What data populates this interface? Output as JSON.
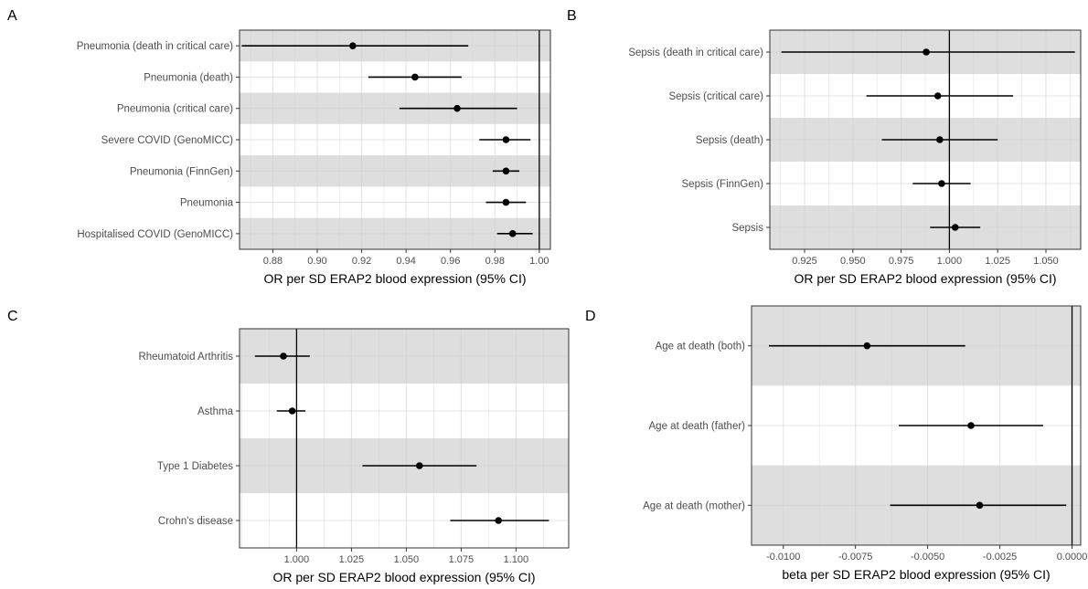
{
  "chart_data": [
    {
      "type": "forest",
      "panel": "A",
      "xlabel": "OR per SD ERAP2 blood expression (95% CI)",
      "xlim": [
        0.865,
        1.005
      ],
      "xticks": [
        "0.88",
        "0.90",
        "0.92",
        "0.94",
        "0.96",
        "0.98",
        "1.00"
      ],
      "reference": 1.0,
      "rows": [
        {
          "label": "Pneumonia (death in critical care)",
          "est": 0.916,
          "lo": 0.866,
          "hi": 0.968
        },
        {
          "label": "Pneumonia (death)",
          "est": 0.944,
          "lo": 0.923,
          "hi": 0.965
        },
        {
          "label": "Pneumonia (critical care)",
          "est": 0.963,
          "lo": 0.937,
          "hi": 0.99
        },
        {
          "label": "Severe COVID (GenoMICC)",
          "est": 0.985,
          "lo": 0.973,
          "hi": 0.996
        },
        {
          "label": "Pneumonia (FinnGen)",
          "est": 0.985,
          "lo": 0.979,
          "hi": 0.991
        },
        {
          "label": "Pneumonia",
          "est": 0.985,
          "lo": 0.976,
          "hi": 0.994
        },
        {
          "label": "Hospitalised COVID (GenoMICC)",
          "est": 0.988,
          "lo": 0.981,
          "hi": 0.997
        }
      ]
    },
    {
      "type": "forest",
      "panel": "B",
      "xlabel": "OR per SD ERAP2 blood expression (95% CI)",
      "xlim": [
        0.907,
        1.068
      ],
      "xticks": [
        "0.925",
        "0.950",
        "0.975",
        "1.000",
        "1.025",
        "1.050"
      ],
      "reference": 1.0,
      "rows": [
        {
          "label": "Sepsis (death in critical care)",
          "est": 0.988,
          "lo": 0.913,
          "hi": 1.065
        },
        {
          "label": "Sepsis (critical care)",
          "est": 0.994,
          "lo": 0.957,
          "hi": 1.033
        },
        {
          "label": "Sepsis (death)",
          "est": 0.995,
          "lo": 0.965,
          "hi": 1.025
        },
        {
          "label": "Sepsis (FinnGen)",
          "est": 0.996,
          "lo": 0.981,
          "hi": 1.011
        },
        {
          "label": "Sepsis",
          "est": 1.003,
          "lo": 0.99,
          "hi": 1.016
        }
      ]
    },
    {
      "type": "forest",
      "panel": "C",
      "xlabel": "OR per SD ERAP2 blood expression (95% CI)",
      "xlim": [
        0.974,
        1.124
      ],
      "xticks": [
        "1.000",
        "1.025",
        "1.050",
        "1.075",
        "1.100"
      ],
      "reference": 1.0,
      "rows": [
        {
          "label": "Rheumatoid Arthritis",
          "est": 0.994,
          "lo": 0.981,
          "hi": 1.006
        },
        {
          "label": "Asthma",
          "est": 0.998,
          "lo": 0.991,
          "hi": 1.004
        },
        {
          "label": "Type 1 Diabetes",
          "est": 1.056,
          "lo": 1.03,
          "hi": 1.082
        },
        {
          "label": "Crohn's disease",
          "est": 1.092,
          "lo": 1.07,
          "hi": 1.115
        }
      ]
    },
    {
      "type": "forest",
      "panel": "D",
      "xlabel": "beta per SD ERAP2 blood expression (95% CI)",
      "xlim": [
        -0.0111,
        0.0003
      ],
      "xticks": [
        "-0.0100",
        "-0.0075",
        "-0.0050",
        "-0.0025",
        "0.0000"
      ],
      "reference": 0.0,
      "rows": [
        {
          "label": "Age at death (both)",
          "est": -0.0071,
          "lo": -0.0105,
          "hi": -0.0037
        },
        {
          "label": "Age at death (father)",
          "est": -0.0035,
          "lo": -0.006,
          "hi": -0.001
        },
        {
          "label": "Age at death (mother)",
          "est": -0.0032,
          "lo": -0.0063,
          "hi": -0.0002
        }
      ]
    }
  ]
}
